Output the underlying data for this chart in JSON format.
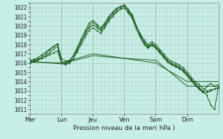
{
  "title": "Pression niveau de la mer( hPa )",
  "background_color": "#c8eee8",
  "line_color": "#1a5c1a",
  "grid_color": "#a8cfc0",
  "ylim": [
    1010.5,
    1022.5
  ],
  "yticks": [
    1011,
    1012,
    1013,
    1014,
    1015,
    1016,
    1017,
    1018,
    1019,
    1020,
    1021,
    1022
  ],
  "day_labels": [
    "Mer",
    "Lun",
    "Jeu",
    "Ven",
    "Sam",
    "Dim"
  ],
  "day_positions": [
    0,
    8,
    16,
    24,
    32,
    40
  ],
  "total_hours": 48,
  "series": [
    {
      "x": [
        0,
        1,
        2,
        3,
        4,
        5,
        6,
        7,
        8,
        9,
        10,
        11,
        12,
        13,
        14,
        15,
        16,
        17,
        18,
        19,
        20,
        21,
        22,
        23,
        24,
        25,
        26,
        27,
        28,
        29,
        30,
        31,
        32,
        33,
        34,
        35,
        36,
        37,
        38,
        39,
        40,
        41,
        42,
        43,
        44,
        45,
        46,
        47,
        48
      ],
      "y": [
        1016.2,
        1016.3,
        1016.4,
        1016.5,
        1016.7,
        1016.9,
        1017.1,
        1017.3,
        1016.0,
        1015.9,
        1016.1,
        1016.5,
        1017.2,
        1018.0,
        1018.8,
        1019.5,
        1019.8,
        1019.5,
        1019.2,
        1019.8,
        1020.5,
        1021.0,
        1021.5,
        1021.8,
        1022.0,
        1021.5,
        1021.0,
        1020.0,
        1019.2,
        1018.5,
        1018.0,
        1018.3,
        1018.0,
        1017.5,
        1017.0,
        1016.5,
        1016.2,
        1016.0,
        1015.8,
        1015.5,
        1015.0,
        1014.5,
        1014.0,
        1013.7,
        1013.3,
        1013.0,
        1013.1,
        1013.2,
        1013.3
      ]
    },
    {
      "x": [
        0,
        1,
        2,
        3,
        4,
        5,
        6,
        7,
        8,
        9,
        10,
        11,
        12,
        13,
        14,
        15,
        16,
        17,
        18,
        19,
        20,
        21,
        22,
        23,
        24,
        25,
        26,
        27,
        28,
        29,
        30,
        31,
        32,
        33,
        34,
        35,
        36,
        37,
        38,
        39,
        40,
        41,
        42,
        43,
        44,
        45,
        46,
        47,
        48
      ],
      "y": [
        1016.0,
        1016.1,
        1016.3,
        1016.5,
        1016.8,
        1017.1,
        1017.5,
        1017.8,
        1016.0,
        1015.8,
        1016.0,
        1016.5,
        1017.4,
        1018.3,
        1019.2,
        1020.0,
        1020.4,
        1020.0,
        1019.6,
        1020.2,
        1020.9,
        1021.4,
        1021.8,
        1022.0,
        1022.2,
        1021.7,
        1021.1,
        1020.0,
        1019.0,
        1018.2,
        1017.7,
        1018.0,
        1017.7,
        1017.2,
        1016.7,
        1016.2,
        1015.9,
        1015.7,
        1015.5,
        1015.2,
        1014.7,
        1014.2,
        1013.7,
        1013.3,
        1012.9,
        1012.8,
        1013.0,
        1013.2,
        1013.4
      ]
    },
    {
      "x": [
        0,
        1,
        2,
        3,
        4,
        5,
        6,
        7,
        8,
        9,
        10,
        11,
        12,
        13,
        14,
        15,
        16,
        17,
        18,
        19,
        20,
        21,
        22,
        23,
        24,
        25,
        26,
        27,
        28,
        29,
        30,
        31,
        32,
        33,
        34,
        35,
        36,
        37,
        38,
        39,
        40,
        41,
        42,
        43,
        44,
        45,
        46,
        47,
        48
      ],
      "y": [
        1016.1,
        1016.2,
        1016.4,
        1016.7,
        1017.0,
        1017.4,
        1017.8,
        1018.1,
        1016.2,
        1016.0,
        1016.2,
        1016.8,
        1017.7,
        1018.6,
        1019.5,
        1020.3,
        1020.6,
        1020.2,
        1019.8,
        1020.3,
        1021.0,
        1021.5,
        1021.9,
        1022.1,
        1022.3,
        1021.8,
        1021.2,
        1020.1,
        1019.1,
        1018.3,
        1017.8,
        1018.1,
        1017.8,
        1017.3,
        1016.8,
        1016.3,
        1016.0,
        1015.8,
        1015.6,
        1015.3,
        1014.8,
        1014.3,
        1013.8,
        1013.4,
        1013.0,
        1012.5,
        1011.5,
        1011.0,
        1013.5
      ]
    },
    {
      "x": [
        0,
        1,
        2,
        3,
        4,
        5,
        6,
        7,
        8,
        9,
        10,
        11,
        12,
        13,
        14,
        15,
        16,
        17,
        18,
        19,
        20,
        21,
        22,
        23,
        24,
        25,
        26,
        27,
        28,
        29,
        30,
        31,
        32,
        33,
        34,
        35,
        36,
        37,
        38,
        39,
        40,
        41,
        42,
        43,
        44,
        45,
        46,
        47,
        48
      ],
      "y": [
        1016.3,
        1016.4,
        1016.6,
        1016.9,
        1017.2,
        1017.5,
        1017.8,
        1018.0,
        1016.5,
        1016.2,
        1016.3,
        1016.8,
        1017.5,
        1018.3,
        1019.1,
        1019.8,
        1020.1,
        1019.8,
        1019.5,
        1020.0,
        1020.7,
        1021.2,
        1021.6,
        1021.8,
        1022.0,
        1021.4,
        1020.8,
        1019.7,
        1018.8,
        1018.0,
        1017.6,
        1017.9,
        1017.6,
        1017.1,
        1016.6,
        1016.1,
        1015.8,
        1015.6,
        1015.4,
        1015.1,
        1014.6,
        1014.1,
        1013.6,
        1013.2,
        1012.8,
        1013.5,
        1013.8,
        1013.5,
        1013.7
      ]
    },
    {
      "x": [
        0,
        8,
        16,
        24,
        32,
        40,
        48
      ],
      "y": [
        1016.1,
        1016.0,
        1017.0,
        1016.5,
        1016.3,
        1013.5,
        1013.5
      ]
    },
    {
      "x": [
        0,
        8,
        16,
        24,
        32,
        40,
        48
      ],
      "y": [
        1016.2,
        1015.9,
        1016.8,
        1016.5,
        1016.0,
        1014.0,
        1014.0
      ]
    }
  ]
}
